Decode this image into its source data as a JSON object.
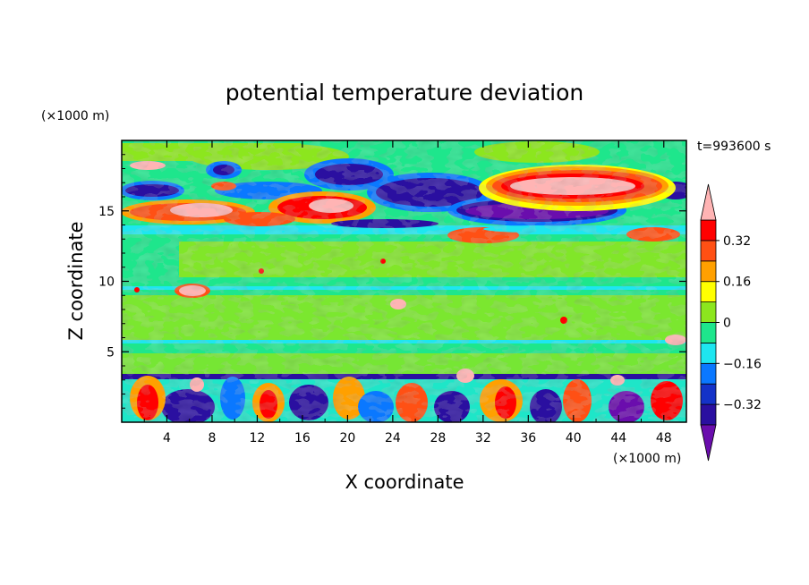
{
  "chart_data": {
    "type": "heatmap",
    "title": "potential temperature deviation",
    "xlabel": "X coordinate",
    "ylabel": "Z coordinate",
    "x_unit": "(×1000 m)",
    "y_unit": "(×1000 m)",
    "time_label": "t=993600 s",
    "xlim": [
      0,
      50
    ],
    "ylim": [
      0,
      20
    ],
    "xticks": [
      4,
      8,
      12,
      16,
      20,
      24,
      28,
      32,
      36,
      40,
      44,
      48
    ],
    "yticks": [
      5,
      10,
      15
    ],
    "xtick_labels": [
      "4",
      "8",
      "12",
      "16",
      "20",
      "24",
      "28",
      "32",
      "36",
      "40",
      "44",
      "48"
    ],
    "ytick_labels": [
      "5",
      "10",
      "15"
    ],
    "colorbar": {
      "levels": [
        -0.4,
        -0.32,
        -0.24,
        -0.16,
        -0.08,
        0,
        0.08,
        0.16,
        0.24,
        0.32,
        0.4
      ],
      "labels": [
        "0.32",
        "0.16",
        "0",
        "−0.16",
        "−0.32"
      ],
      "colors": [
        "#6a0dad",
        "#2a0fa0",
        "#1432c8",
        "#0a78ff",
        "#1ee6f0",
        "#1ee68c",
        "#8ce61e",
        "#ffff00",
        "#ffa000",
        "#ff5014",
        "#ff0000",
        "#ffb4b4"
      ]
    }
  }
}
